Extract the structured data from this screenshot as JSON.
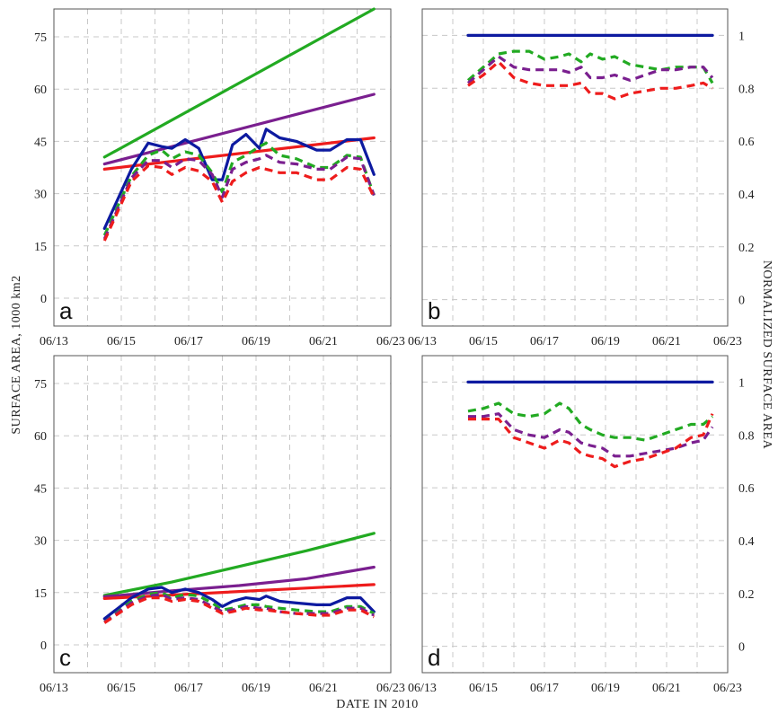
{
  "figure": {
    "xlabel": "DATE IN 2010",
    "ylabel_left": "SURFACE AREA, 1000 km2",
    "ylabel_right": "NORMALIZED SURFACE AREA"
  },
  "chart_data": [
    {
      "panel": "a",
      "type": "line",
      "x_ticks": [
        "06/13",
        "06/15",
        "06/17",
        "06/19",
        "06/21",
        "06/23"
      ],
      "xlim": [
        "06/13",
        "06/23"
      ],
      "ylim": [
        -8,
        83
      ],
      "y_ticks": [
        0,
        15,
        30,
        45,
        60,
        75
      ],
      "grid": true,
      "series": [
        {
          "color": "#22aa22",
          "style": "solid",
          "x": [
            14.5,
            22.5
          ],
          "y": [
            40.5,
            83
          ]
        },
        {
          "color": "#7a1f8f",
          "style": "solid",
          "x": [
            14.5,
            22.5
          ],
          "y": [
            38.5,
            58.5
          ]
        },
        {
          "color": "#ee1c1c",
          "style": "solid",
          "x": [
            14.5,
            22.5
          ],
          "y": [
            37,
            46
          ]
        },
        {
          "color": "#0d1aa0",
          "style": "solid",
          "x": [
            14.5,
            15.3,
            15.8,
            16.2,
            16.5,
            16.9,
            17.3,
            17.7,
            18.0,
            18.3,
            18.7,
            19.1,
            19.3,
            19.7,
            20.2,
            20.8,
            21.2,
            21.7,
            22.1,
            22.5
          ],
          "y": [
            20,
            37,
            44.5,
            43.5,
            43,
            45.5,
            43,
            34,
            34,
            44,
            47,
            43,
            48.5,
            46,
            45,
            42.5,
            42.5,
            45.5,
            45.5,
            35.5
          ]
        },
        {
          "color": "#22aa22",
          "style": "dashed",
          "x": [
            14.5,
            15.3,
            15.8,
            16.2,
            16.5,
            16.9,
            17.3,
            17.7,
            18.0,
            18.3,
            18.7,
            19.1,
            19.3,
            19.7,
            20.2,
            20.8,
            21.2,
            21.7,
            22.1,
            22.5
          ],
          "y": [
            18,
            35,
            41,
            42.5,
            40,
            42,
            41,
            36,
            30.5,
            39,
            41,
            43.5,
            44.5,
            41,
            40,
            37.5,
            37.5,
            41,
            40.5,
            29.5
          ]
        },
        {
          "color": "#7a1f8f",
          "style": "dashed",
          "x": [
            14.5,
            15.3,
            15.8,
            16.2,
            16.5,
            16.9,
            17.3,
            17.7,
            18.0,
            18.3,
            18.7,
            19.1,
            19.3,
            19.7,
            20.2,
            20.8,
            21.2,
            21.7,
            22.1,
            22.5
          ],
          "y": [
            17,
            34.5,
            39.5,
            39.5,
            37.5,
            40,
            39.5,
            35.5,
            29,
            37,
            39,
            40,
            41,
            39,
            38.5,
            37,
            37,
            40.5,
            40,
            29.5
          ]
        },
        {
          "color": "#ee1c1c",
          "style": "dashed",
          "x": [
            14.5,
            15.3,
            15.8,
            16.2,
            16.5,
            16.9,
            17.3,
            17.7,
            18.0,
            18.3,
            18.7,
            19.1,
            19.3,
            19.7,
            20.2,
            20.8,
            21.2,
            21.7,
            22.1,
            22.5
          ],
          "y": [
            16.5,
            33.5,
            38,
            37.5,
            35.5,
            37.5,
            36.5,
            33.5,
            27.5,
            33.5,
            36,
            37.5,
            37,
            36,
            36,
            34,
            34,
            37.5,
            37,
            29
          ]
        }
      ]
    },
    {
      "panel": "b",
      "type": "line",
      "x_ticks": [
        "06/13",
        "06/15",
        "06/17",
        "06/19",
        "06/21",
        "06/23"
      ],
      "xlim": [
        "06/13",
        "06/23"
      ],
      "ylim": [
        -0.1,
        1.1
      ],
      "y_ticks": [
        0,
        0.2,
        0.4,
        0.6,
        0.8,
        1
      ],
      "grid": true,
      "series": [
        {
          "color": "#0d1aa0",
          "style": "solid",
          "x": [
            14.5,
            22.5
          ],
          "y": [
            1,
            1
          ]
        },
        {
          "color": "#22aa22",
          "style": "dashed",
          "x": [
            14.5,
            15.0,
            15.5,
            16.0,
            16.5,
            17.0,
            17.5,
            17.8,
            18.2,
            18.5,
            18.9,
            19.3,
            19.8,
            20.3,
            20.8,
            21.3,
            21.8,
            22.2,
            22.5
          ],
          "y": [
            0.83,
            0.88,
            0.93,
            0.94,
            0.94,
            0.91,
            0.92,
            0.93,
            0.9,
            0.93,
            0.91,
            0.92,
            0.89,
            0.88,
            0.87,
            0.88,
            0.88,
            0.88,
            0.82
          ]
        },
        {
          "color": "#7a1f8f",
          "style": "dashed",
          "x": [
            14.5,
            15.0,
            15.5,
            16.0,
            16.5,
            17.0,
            17.5,
            17.8,
            18.2,
            18.5,
            18.9,
            19.3,
            19.8,
            20.3,
            20.8,
            21.3,
            21.8,
            22.2,
            22.5
          ],
          "y": [
            0.82,
            0.87,
            0.92,
            0.88,
            0.87,
            0.87,
            0.87,
            0.86,
            0.88,
            0.84,
            0.84,
            0.85,
            0.83,
            0.85,
            0.87,
            0.87,
            0.88,
            0.88,
            0.84
          ]
        },
        {
          "color": "#ee1c1c",
          "style": "dashed",
          "x": [
            14.5,
            15.0,
            15.5,
            16.0,
            16.5,
            17.0,
            17.5,
            17.8,
            18.2,
            18.5,
            18.9,
            19.3,
            19.8,
            20.3,
            20.8,
            21.3,
            21.8,
            22.2,
            22.5
          ],
          "y": [
            0.81,
            0.85,
            0.9,
            0.84,
            0.82,
            0.81,
            0.81,
            0.81,
            0.82,
            0.78,
            0.78,
            0.76,
            0.78,
            0.79,
            0.8,
            0.8,
            0.81,
            0.82,
            0.8
          ]
        }
      ]
    },
    {
      "panel": "c",
      "type": "line",
      "x_ticks": [
        "06/13",
        "06/15",
        "06/17",
        "06/19",
        "06/21",
        "06/23"
      ],
      "xlim": [
        "06/13",
        "06/23"
      ],
      "ylim": [
        -8,
        83
      ],
      "y_ticks": [
        0,
        15,
        30,
        45,
        60,
        75
      ],
      "grid": true,
      "series": [
        {
          "color": "#22aa22",
          "style": "solid",
          "x": [
            14.5,
            16.5,
            18.5,
            20.5,
            22.5
          ],
          "y": [
            14.2,
            18,
            22.5,
            27,
            32
          ]
        },
        {
          "color": "#7a1f8f",
          "style": "solid",
          "x": [
            14.5,
            16.5,
            18.5,
            20.5,
            22.5
          ],
          "y": [
            13.8,
            15.5,
            17,
            19,
            22.3
          ]
        },
        {
          "color": "#ee1c1c",
          "style": "solid",
          "x": [
            14.5,
            22.5
          ],
          "y": [
            13.3,
            17.3
          ]
        },
        {
          "color": "#0d1aa0",
          "style": "solid",
          "x": [
            14.5,
            15.3,
            15.8,
            16.2,
            16.5,
            16.9,
            17.3,
            17.7,
            18.0,
            18.3,
            18.7,
            19.1,
            19.3,
            19.7,
            20.2,
            20.8,
            21.2,
            21.7,
            22.1,
            22.5
          ],
          "y": [
            7.5,
            13.5,
            16,
            16.5,
            15,
            16,
            15,
            13,
            11,
            12.5,
            13.5,
            13,
            14,
            12.5,
            12,
            11.5,
            11.5,
            13.5,
            13.5,
            9.5
          ]
        },
        {
          "color": "#22aa22",
          "style": "dashed",
          "x": [
            14.5,
            15.3,
            15.8,
            16.2,
            16.5,
            16.9,
            17.3,
            17.7,
            18.0,
            18.3,
            18.7,
            19.1,
            19.3,
            19.7,
            20.2,
            20.8,
            21.2,
            21.7,
            22.1,
            22.5
          ],
          "y": [
            6.5,
            12.5,
            14.5,
            15,
            13.5,
            14.5,
            14,
            12,
            10,
            10.5,
            11.5,
            11.5,
            11,
            10.5,
            10,
            9.5,
            9.5,
            11,
            11,
            9
          ]
        },
        {
          "color": "#7a1f8f",
          "style": "dashed",
          "x": [
            14.5,
            15.3,
            15.8,
            16.2,
            16.5,
            16.9,
            17.3,
            17.7,
            18.0,
            18.3,
            18.7,
            19.1,
            19.3,
            19.7,
            20.2,
            20.8,
            21.2,
            21.7,
            22.1,
            22.5
          ],
          "y": [
            6.5,
            12,
            14,
            14.5,
            13,
            13.5,
            13,
            11,
            9.5,
            10,
            11,
            10.5,
            10.5,
            9.5,
            9,
            9,
            9,
            10.5,
            10.5,
            8.5
          ]
        },
        {
          "color": "#ee1c1c",
          "style": "dashed",
          "x": [
            14.5,
            15.3,
            15.8,
            16.2,
            16.5,
            16.9,
            17.3,
            17.7,
            18.0,
            18.3,
            18.7,
            19.1,
            19.3,
            19.7,
            20.2,
            20.8,
            21.2,
            21.7,
            22.1,
            22.5
          ],
          "y": [
            6.3,
            11.5,
            13.5,
            13.5,
            12.5,
            13,
            12.5,
            10.5,
            9,
            9.5,
            10.5,
            10,
            10,
            9.5,
            9,
            8.5,
            8.5,
            10,
            10,
            8
          ]
        }
      ]
    },
    {
      "panel": "d",
      "type": "line",
      "x_ticks": [
        "06/13",
        "06/15",
        "06/17",
        "06/19",
        "06/21",
        "06/23"
      ],
      "xlim": [
        "06/13",
        "06/23"
      ],
      "ylim": [
        -0.1,
        1.1
      ],
      "y_ticks": [
        0,
        0.2,
        0.4,
        0.6,
        0.8,
        1
      ],
      "grid": true,
      "series": [
        {
          "color": "#0d1aa0",
          "style": "solid",
          "x": [
            14.5,
            22.5
          ],
          "y": [
            1,
            1
          ]
        },
        {
          "color": "#22aa22",
          "style": "dashed",
          "x": [
            14.5,
            15.0,
            15.5,
            16.0,
            16.5,
            17.0,
            17.5,
            17.8,
            18.2,
            18.5,
            18.9,
            19.3,
            19.8,
            20.3,
            20.8,
            21.3,
            21.8,
            22.2,
            22.5
          ],
          "y": [
            0.89,
            0.9,
            0.92,
            0.88,
            0.87,
            0.88,
            0.92,
            0.9,
            0.84,
            0.82,
            0.8,
            0.79,
            0.79,
            0.78,
            0.8,
            0.82,
            0.84,
            0.84,
            0.87
          ]
        },
        {
          "color": "#7a1f8f",
          "style": "dashed",
          "x": [
            14.5,
            15.0,
            15.5,
            16.0,
            16.5,
            17.0,
            17.5,
            17.8,
            18.2,
            18.5,
            18.9,
            19.3,
            19.8,
            20.3,
            20.8,
            21.3,
            21.8,
            22.2,
            22.5
          ],
          "y": [
            0.87,
            0.87,
            0.88,
            0.82,
            0.8,
            0.79,
            0.82,
            0.81,
            0.77,
            0.76,
            0.75,
            0.72,
            0.72,
            0.73,
            0.74,
            0.75,
            0.77,
            0.78,
            0.83
          ]
        },
        {
          "color": "#ee1c1c",
          "style": "dashed",
          "x": [
            14.5,
            15.0,
            15.5,
            16.0,
            16.5,
            17.0,
            17.5,
            17.8,
            18.2,
            18.5,
            18.9,
            19.3,
            19.8,
            20.3,
            20.8,
            21.3,
            21.8,
            22.2,
            22.5
          ],
          "y": [
            0.86,
            0.86,
            0.86,
            0.79,
            0.77,
            0.75,
            0.78,
            0.77,
            0.73,
            0.72,
            0.71,
            0.68,
            0.7,
            0.71,
            0.73,
            0.75,
            0.79,
            0.8,
            0.88
          ]
        }
      ]
    }
  ]
}
